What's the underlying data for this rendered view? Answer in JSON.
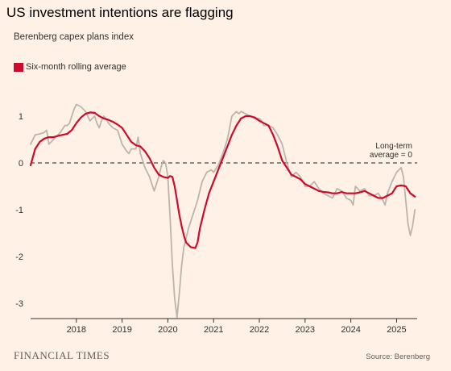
{
  "title": "US investment intentions are flagging",
  "subtitle": "Berenberg capex plans index",
  "legend": {
    "label": "Six-month rolling average"
  },
  "annotation": {
    "line1": "Long-term",
    "line2": "average = 0"
  },
  "footer": {
    "brand": "FINANCIAL TIMES",
    "source": "Source: Berenberg"
  },
  "colors": {
    "background": "#fff1e5",
    "rolling_average": "#cc0a2c",
    "monthly_index": "#bdb4ab",
    "baseline_dash": "#4d4845",
    "axis": "#33302e"
  },
  "chart_data": {
    "type": "line",
    "title": "US investment intentions are flagging",
    "subtitle": "Berenberg capex plans index",
    "xlabel": "",
    "ylabel": "",
    "xlim": [
      2017.0,
      2025.45
    ],
    "ylim": [
      -3.3,
      1.5
    ],
    "x_ticks": [
      2018,
      2019,
      2020,
      2021,
      2022,
      2023,
      2024,
      2025
    ],
    "x_tick_labels": [
      "2018",
      "2019",
      "2020",
      "2021",
      "2022",
      "2023",
      "2024",
      "2025"
    ],
    "y_ticks": [
      1,
      0,
      -1,
      -2,
      -3
    ],
    "y_tick_labels": [
      "1",
      "0",
      "-1",
      "-2",
      "-3"
    ],
    "reference_line": {
      "y": 0,
      "style": "dashed"
    },
    "grid": false,
    "legend_position": "top-left",
    "series": [
      {
        "color": "#bdb4ab",
        "x": [
          2017.0,
          2017.1,
          2017.2,
          2017.3,
          2017.35,
          2017.4,
          2017.45,
          2017.55,
          2017.65,
          2017.75,
          2017.8,
          2017.85,
          2017.9,
          2017.95,
          2018.0,
          2018.1,
          2018.2,
          2018.3,
          2018.4,
          2018.45,
          2018.5,
          2018.55,
          2018.6,
          2018.65,
          2018.7,
          2018.8,
          2018.9,
          2018.95,
          2019.0,
          2019.1,
          2019.15,
          2019.2,
          2019.3,
          2019.35,
          2019.4,
          2019.5,
          2019.6,
          2019.7,
          2019.8,
          2019.85,
          2019.9,
          2019.95,
          2020.0,
          2020.05,
          2020.1,
          2020.15,
          2020.2,
          2020.25,
          2020.3,
          2020.35,
          2020.45,
          2020.55,
          2020.65,
          2020.75,
          2020.85,
          2020.95,
          2021.0,
          2021.1,
          2021.2,
          2021.3,
          2021.35,
          2021.4,
          2021.45,
          2021.5,
          2021.55,
          2021.6,
          2021.7,
          2021.8,
          2021.9,
          2022.0,
          2022.05,
          2022.1,
          2022.2,
          2022.3,
          2022.4,
          2022.5,
          2022.6,
          2022.7,
          2022.8,
          2022.9,
          2023.0,
          2023.1,
          2023.2,
          2023.3,
          2023.4,
          2023.5,
          2023.6,
          2023.7,
          2023.8,
          2023.9,
          2024.0,
          2024.05,
          2024.1,
          2024.2,
          2024.3,
          2024.4,
          2024.5,
          2024.6,
          2024.7,
          2024.75,
          2024.8,
          2024.9,
          2025.0,
          2025.05,
          2025.1,
          2025.15,
          2025.2,
          2025.25,
          2025.3,
          2025.35,
          2025.4
        ],
        "y": [
          0.4,
          0.6,
          0.62,
          0.65,
          0.7,
          0.4,
          0.45,
          0.55,
          0.65,
          0.8,
          0.8,
          0.85,
          1.0,
          1.15,
          1.25,
          1.2,
          1.1,
          0.9,
          1.0,
          0.85,
          0.75,
          0.9,
          1.0,
          0.95,
          0.85,
          0.75,
          0.7,
          0.55,
          0.4,
          0.25,
          0.2,
          0.3,
          0.3,
          0.55,
          0.2,
          -0.1,
          -0.3,
          -0.6,
          -0.3,
          -0.1,
          0.05,
          0.0,
          -0.3,
          -1.2,
          -2.2,
          -2.9,
          -3.3,
          -2.8,
          -2.2,
          -1.8,
          -1.4,
          -1.1,
          -0.8,
          -0.4,
          -0.2,
          -0.15,
          -0.2,
          -0.05,
          0.2,
          0.5,
          0.75,
          1.0,
          1.05,
          1.1,
          1.05,
          1.1,
          1.05,
          1.0,
          0.95,
          0.95,
          0.9,
          0.8,
          0.8,
          0.75,
          0.6,
          0.4,
          0.0,
          -0.3,
          -0.2,
          -0.3,
          -0.5,
          -0.5,
          -0.4,
          -0.55,
          -0.65,
          -0.7,
          -0.75,
          -0.55,
          -0.6,
          -0.75,
          -0.8,
          -0.9,
          -0.5,
          -0.6,
          -0.55,
          -0.7,
          -0.7,
          -0.65,
          -0.8,
          -0.9,
          -0.65,
          -0.4,
          -0.2,
          -0.15,
          -0.1,
          -0.3,
          -0.8,
          -1.3,
          -1.55,
          -1.35,
          -1.0
        ]
      },
      {
        "name": "Six-month rolling average",
        "color": "#cc0a2c",
        "x": [
          2017.0,
          2017.1,
          2017.2,
          2017.3,
          2017.4,
          2017.5,
          2017.6,
          2017.7,
          2017.8,
          2017.9,
          2018.0,
          2018.1,
          2018.2,
          2018.3,
          2018.4,
          2018.5,
          2018.6,
          2018.7,
          2018.8,
          2018.9,
          2019.0,
          2019.1,
          2019.2,
          2019.3,
          2019.4,
          2019.5,
          2019.6,
          2019.7,
          2019.8,
          2019.9,
          2020.0,
          2020.05,
          2020.1,
          2020.15,
          2020.2,
          2020.25,
          2020.3,
          2020.35,
          2020.4,
          2020.5,
          2020.6,
          2020.65,
          2020.7,
          2020.8,
          2020.9,
          2021.0,
          2021.1,
          2021.2,
          2021.3,
          2021.4,
          2021.5,
          2021.6,
          2021.7,
          2021.8,
          2021.9,
          2022.0,
          2022.1,
          2022.2,
          2022.3,
          2022.4,
          2022.5,
          2022.6,
          2022.7,
          2022.8,
          2022.9,
          2023.0,
          2023.1,
          2023.2,
          2023.3,
          2023.4,
          2023.5,
          2023.6,
          2023.7,
          2023.8,
          2023.9,
          2024.0,
          2024.1,
          2024.2,
          2024.3,
          2024.4,
          2024.5,
          2024.6,
          2024.7,
          2024.8,
          2024.9,
          2025.0,
          2025.1,
          2025.2,
          2025.3,
          2025.4
        ],
        "y": [
          -0.05,
          0.3,
          0.45,
          0.52,
          0.55,
          0.55,
          0.58,
          0.6,
          0.62,
          0.7,
          0.85,
          0.97,
          1.05,
          1.08,
          1.07,
          1.0,
          0.95,
          0.92,
          0.88,
          0.82,
          0.75,
          0.6,
          0.45,
          0.38,
          0.35,
          0.25,
          0.1,
          -0.1,
          -0.25,
          -0.3,
          -0.32,
          -0.28,
          -0.3,
          -0.5,
          -0.8,
          -1.1,
          -1.35,
          -1.55,
          -1.7,
          -1.8,
          -1.82,
          -1.7,
          -1.4,
          -1.0,
          -0.65,
          -0.4,
          -0.15,
          0.1,
          0.35,
          0.6,
          0.8,
          0.95,
          1.0,
          1.0,
          0.97,
          0.9,
          0.85,
          0.8,
          0.6,
          0.35,
          0.05,
          -0.1,
          -0.25,
          -0.3,
          -0.35,
          -0.45,
          -0.5,
          -0.55,
          -0.6,
          -0.62,
          -0.63,
          -0.65,
          -0.65,
          -0.62,
          -0.65,
          -0.65,
          -0.65,
          -0.63,
          -0.6,
          -0.65,
          -0.7,
          -0.75,
          -0.75,
          -0.7,
          -0.65,
          -0.5,
          -0.48,
          -0.5,
          -0.65,
          -0.72
        ]
      }
    ]
  }
}
